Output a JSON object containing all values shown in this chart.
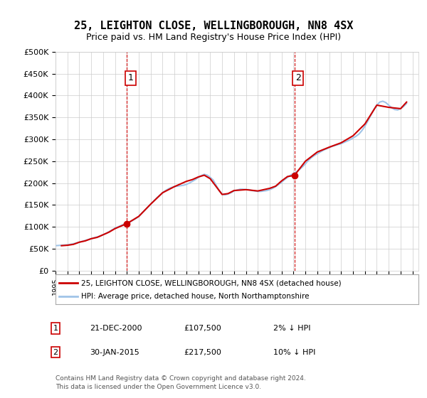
{
  "title": "25, LEIGHTON CLOSE, WELLINGBOROUGH, NN8 4SX",
  "subtitle": "Price paid vs. HM Land Registry's House Price Index (HPI)",
  "ylabel_ticks": [
    "£0",
    "£50K",
    "£100K",
    "£150K",
    "£200K",
    "£250K",
    "£300K",
    "£350K",
    "£400K",
    "£450K",
    "£500K"
  ],
  "ylim": [
    0,
    500000
  ],
  "xlim_start": 1995.0,
  "xlim_end": 2025.5,
  "hpi_color": "#a0c4e8",
  "sale_color": "#cc0000",
  "marker1_x": 2001.0,
  "marker1_y": 107500,
  "marker2_x": 2015.08,
  "marker2_y": 217500,
  "vline1_x": 2001.0,
  "vline2_x": 2015.08,
  "vline_color": "#cc0000",
  "legend_label_sale": "25, LEIGHTON CLOSE, WELLINGBOROUGH, NN8 4SX (detached house)",
  "legend_label_hpi": "HPI: Average price, detached house, North Northamptonshire",
  "annotation1_num": "1",
  "annotation2_num": "2",
  "info1_date": "21-DEC-2000",
  "info1_price": "£107,500",
  "info1_hpi": "2% ↓ HPI",
  "info2_date": "30-JAN-2015",
  "info2_price": "£217,500",
  "info2_hpi": "10% ↓ HPI",
  "footer": "Contains HM Land Registry data © Crown copyright and database right 2024.\nThis data is licensed under the Open Government Licence v3.0.",
  "bg_color": "#ffffff",
  "plot_bg_color": "#ffffff",
  "grid_color": "#cccccc",
  "hpi_data_x": [
    1995.0,
    1995.25,
    1995.5,
    1995.75,
    1996.0,
    1996.25,
    1996.5,
    1996.75,
    1997.0,
    1997.25,
    1997.5,
    1997.75,
    1998.0,
    1998.25,
    1998.5,
    1998.75,
    1999.0,
    1999.25,
    1999.5,
    1999.75,
    2000.0,
    2000.25,
    2000.5,
    2000.75,
    2001.0,
    2001.25,
    2001.5,
    2001.75,
    2002.0,
    2002.25,
    2002.5,
    2002.75,
    2003.0,
    2003.25,
    2003.5,
    2003.75,
    2004.0,
    2004.25,
    2004.5,
    2004.75,
    2005.0,
    2005.25,
    2005.5,
    2005.75,
    2006.0,
    2006.25,
    2006.5,
    2006.75,
    2007.0,
    2007.25,
    2007.5,
    2007.75,
    2008.0,
    2008.25,
    2008.5,
    2008.75,
    2009.0,
    2009.25,
    2009.5,
    2009.75,
    2010.0,
    2010.25,
    2010.5,
    2010.75,
    2011.0,
    2011.25,
    2011.5,
    2011.75,
    2012.0,
    2012.25,
    2012.5,
    2012.75,
    2013.0,
    2013.25,
    2013.5,
    2013.75,
    2014.0,
    2014.25,
    2014.5,
    2014.75,
    2015.0,
    2015.25,
    2015.5,
    2015.75,
    2016.0,
    2016.25,
    2016.5,
    2016.75,
    2017.0,
    2017.25,
    2017.5,
    2017.75,
    2018.0,
    2018.25,
    2018.5,
    2018.75,
    2019.0,
    2019.25,
    2019.5,
    2019.75,
    2020.0,
    2020.25,
    2020.5,
    2020.75,
    2021.0,
    2021.25,
    2021.5,
    2021.75,
    2022.0,
    2022.25,
    2022.5,
    2022.75,
    2023.0,
    2023.25,
    2023.5,
    2023.75,
    2024.0,
    2024.25,
    2024.5
  ],
  "hpi_data_y": [
    57000,
    57500,
    58000,
    58500,
    59000,
    60000,
    61500,
    63000,
    65000,
    67000,
    69000,
    71000,
    73000,
    75000,
    77000,
    79000,
    82000,
    85000,
    89000,
    93000,
    97000,
    100000,
    103000,
    106000,
    108000,
    111000,
    115000,
    119000,
    124000,
    131000,
    138000,
    145000,
    152000,
    159000,
    166000,
    172000,
    178000,
    183000,
    187000,
    190000,
    192000,
    193000,
    194000,
    195000,
    197000,
    200000,
    204000,
    208000,
    213000,
    217000,
    220000,
    218000,
    213000,
    207000,
    195000,
    183000,
    175000,
    173000,
    175000,
    178000,
    182000,
    184000,
    186000,
    186000,
    185000,
    185000,
    183000,
    182000,
    181000,
    181000,
    182000,
    183000,
    185000,
    188000,
    192000,
    197000,
    202000,
    208000,
    213000,
    218000,
    222000,
    226000,
    231000,
    237000,
    244000,
    252000,
    258000,
    263000,
    267000,
    271000,
    275000,
    278000,
    281000,
    284000,
    286000,
    288000,
    290000,
    293000,
    296000,
    299000,
    303000,
    307000,
    312000,
    320000,
    330000,
    342000,
    355000,
    368000,
    378000,
    385000,
    387000,
    384000,
    378000,
    372000,
    368000,
    367000,
    370000,
    375000,
    382000
  ],
  "sale_data_x": [
    1995.5,
    1996.0,
    1996.5,
    1997.0,
    1997.5,
    1998.0,
    1998.5,
    1999.0,
    1999.5,
    2000.0,
    2001.0,
    2002.0,
    2003.0,
    2004.0,
    2005.0,
    2006.0,
    2006.5,
    2007.0,
    2007.5,
    2008.0,
    2008.5,
    2009.0,
    2009.5,
    2010.0,
    2011.0,
    2012.0,
    2013.0,
    2013.5,
    2014.0,
    2014.5,
    2015.08,
    2016.0,
    2017.0,
    2018.0,
    2019.0,
    2020.0,
    2021.0,
    2022.0,
    2023.0,
    2024.0,
    2024.5
  ],
  "sale_data_y": [
    57000,
    58000,
    60000,
    65000,
    68000,
    73000,
    76000,
    82000,
    88000,
    96000,
    107500,
    124000,
    152000,
    178000,
    192000,
    204000,
    208000,
    214000,
    218000,
    210000,
    192000,
    174000,
    176000,
    183000,
    185000,
    182000,
    188000,
    193000,
    205000,
    215000,
    217500,
    250000,
    271000,
    282000,
    292000,
    308000,
    335000,
    378000,
    373000,
    370000,
    385000
  ]
}
